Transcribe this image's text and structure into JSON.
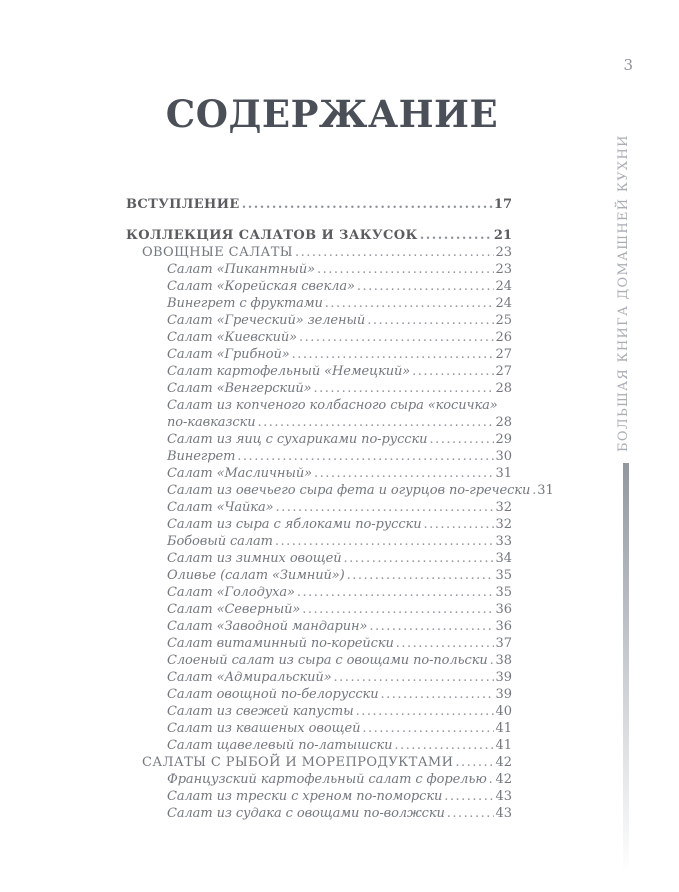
{
  "page": {
    "number": "3",
    "title": "СОДЕРЖАНИЕ",
    "sidebar_text": "БОЛЬШАЯ КНИГА ДОМАШНЕЙ КУХНИ"
  },
  "colors": {
    "title": "#4b5058",
    "heading_bold": "#5a5c5f",
    "entry_text": "#73787f",
    "dot_leader": "#8f939a",
    "side_text": "#a9adb4",
    "page_number": "#8d9199",
    "side_rule_top": "#93979e"
  },
  "toc": {
    "entries": [
      {
        "level": 0,
        "text": "ВСТУПЛЕНИЕ",
        "page": "17",
        "gap_before": false
      },
      {
        "level": 0,
        "text": "КОЛЛЕКЦИЯ САЛАТОВ И ЗАКУСОК",
        "page": "21",
        "gap_before": true
      },
      {
        "level": 1,
        "text": "ОВОЩНЫЕ САЛАТЫ",
        "page": "23",
        "gap_before": false
      },
      {
        "level": 2,
        "text": "Салат «Пикантный»",
        "page": "23",
        "gap_before": false
      },
      {
        "level": 2,
        "text": "Салат «Корейская свекла»",
        "page": "24",
        "gap_before": false
      },
      {
        "level": 2,
        "text": "Винегрет с фруктами",
        "page": "24",
        "gap_before": false
      },
      {
        "level": 2,
        "text": "Салат «Греческий» зеленый",
        "page": "25",
        "gap_before": false
      },
      {
        "level": 2,
        "text": "Салат «Киевский»",
        "page": "26",
        "gap_before": false
      },
      {
        "level": 2,
        "text": "Салат «Грибной»",
        "page": "27",
        "gap_before": false
      },
      {
        "level": 2,
        "text": "Салат картофельный «Немецкий»",
        "page": "27",
        "gap_before": false
      },
      {
        "level": 2,
        "text": "Салат «Венгерский»",
        "page": "28",
        "gap_before": false
      },
      {
        "level": 2,
        "text": "Салат из копченого колбасного сыра «косичка»",
        "page": null,
        "gap_before": false
      },
      {
        "level": 2,
        "text": "по-кавказски",
        "page": "28",
        "gap_before": false
      },
      {
        "level": 2,
        "text": "Салат из яиц с сухариками по-русски",
        "page": "29",
        "gap_before": false
      },
      {
        "level": 2,
        "text": "Винегрет",
        "page": "30",
        "gap_before": false
      },
      {
        "level": 2,
        "text": "Салат «Масличный»",
        "page": "31",
        "gap_before": false
      },
      {
        "level": 2,
        "text": "Салат из овечьего сыра фета и огурцов по-гречески",
        "page": "31",
        "gap_before": false
      },
      {
        "level": 2,
        "text": "Салат «Чайка»",
        "page": "32",
        "gap_before": false
      },
      {
        "level": 2,
        "text": "Салат из сыра с яблоками по-русски",
        "page": "32",
        "gap_before": false
      },
      {
        "level": 2,
        "text": "Бобовый салат",
        "page": "33",
        "gap_before": false
      },
      {
        "level": 2,
        "text": "Салат из зимних овощей",
        "page": "34",
        "gap_before": false
      },
      {
        "level": 2,
        "text": "Оливье (салат «Зимний»)",
        "page": "35",
        "gap_before": false
      },
      {
        "level": 2,
        "text": "Салат «Голодуха»",
        "page": "35",
        "gap_before": false
      },
      {
        "level": 2,
        "text": "Салат «Северный»",
        "page": "36",
        "gap_before": false
      },
      {
        "level": 2,
        "text": "Салат «Заводной мандарин»",
        "page": "36",
        "gap_before": false
      },
      {
        "level": 2,
        "text": "Салат витаминный по-корейски",
        "page": "37",
        "gap_before": false
      },
      {
        "level": 2,
        "text": "Слоеный салат из сыра с овощами по-польски",
        "page": "38",
        "gap_before": false
      },
      {
        "level": 2,
        "text": "Салат «Адмиральский»",
        "page": "39",
        "gap_before": false
      },
      {
        "level": 2,
        "text": "Салат овощной по-белорусски",
        "page": "39",
        "gap_before": false
      },
      {
        "level": 2,
        "text": "Салат из свежей капусты",
        "page": "40",
        "gap_before": false
      },
      {
        "level": 2,
        "text": "Салат из квашеных овощей",
        "page": "41",
        "gap_before": false
      },
      {
        "level": 2,
        "text": "Салат щавелевый по-латышски",
        "page": "41",
        "gap_before": false
      },
      {
        "level": 1,
        "text": "САЛАТЫ С РЫБОЙ И МОРЕПРОДУКТАМИ",
        "page": "42",
        "gap_before": false
      },
      {
        "level": 2,
        "text": "Французский картофельный салат с форелью",
        "page": "42",
        "gap_before": false
      },
      {
        "level": 2,
        "text": "Салат из трески с хреном по-поморски",
        "page": "43",
        "gap_before": false
      },
      {
        "level": 2,
        "text": "Салат из судака с овощами по-волжски",
        "page": "43",
        "gap_before": false
      }
    ]
  }
}
